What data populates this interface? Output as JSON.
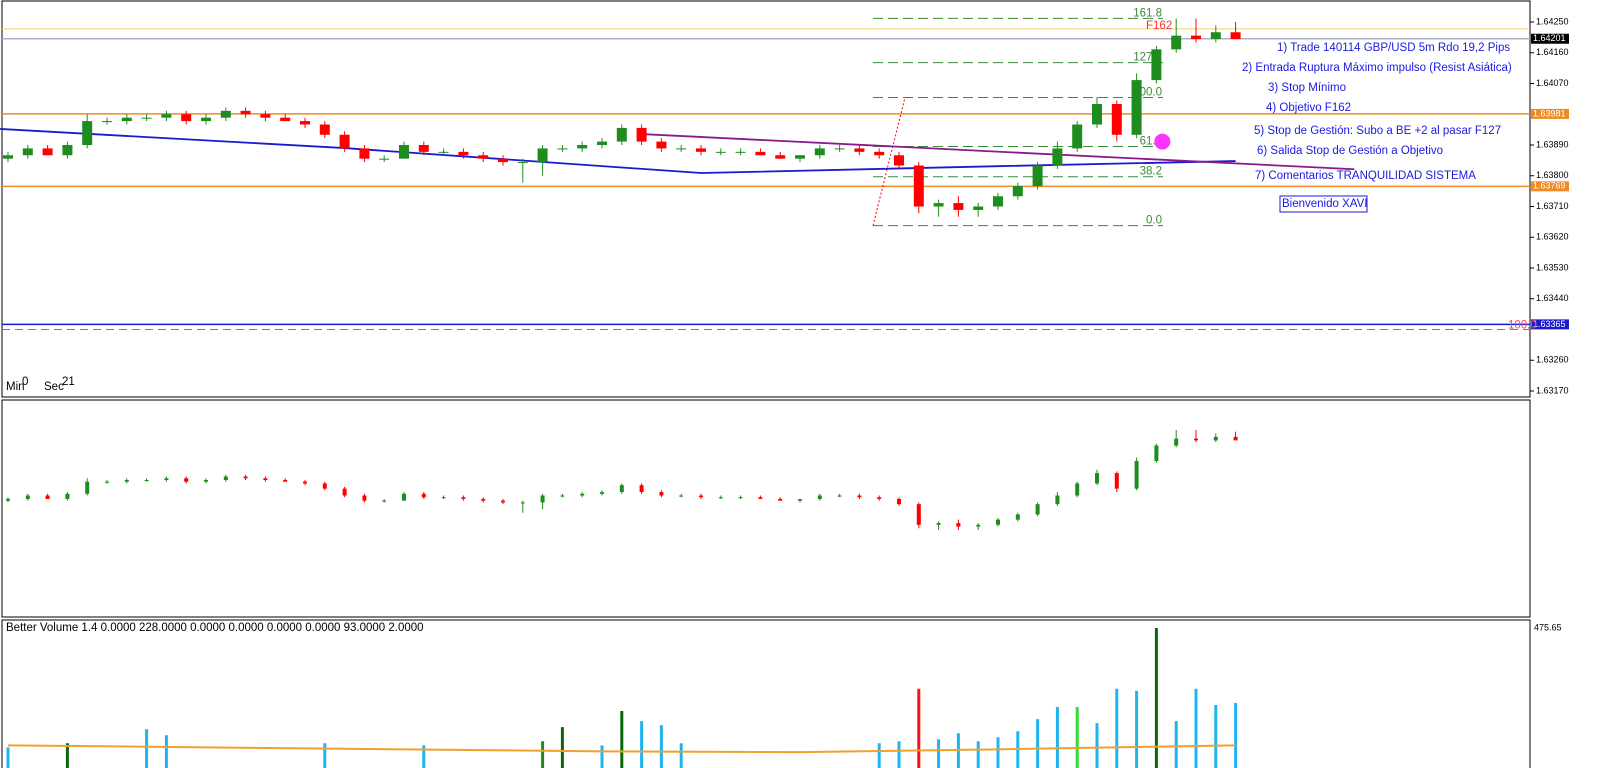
{
  "price_axis": {
    "ylim": [
      1.6317,
      1.6425
    ],
    "ticks": [
      {
        "value": 1.6425,
        "label": "1.64250"
      },
      {
        "value": 1.6416,
        "label": "1.64160"
      },
      {
        "value": 1.6407,
        "label": "1.64070"
      },
      {
        "value": 1.6389,
        "label": "1.63890"
      },
      {
        "value": 1.638,
        "label": "1.63800"
      },
      {
        "value": 1.6371,
        "label": "1.63710"
      },
      {
        "value": 1.6362,
        "label": "1.63620"
      },
      {
        "value": 1.6353,
        "label": "1.63530"
      },
      {
        "value": 1.6344,
        "label": "1.63440"
      },
      {
        "value": 1.6326,
        "label": "1.63260"
      },
      {
        "value": 1.6317,
        "label": "1.63170"
      }
    ]
  },
  "levels": [
    {
      "value": 1.6423,
      "color": "#f0d060"
    },
    {
      "value": 1.64201,
      "color": "#b0b0c8",
      "bg": "#000000"
    },
    {
      "value": 1.63981,
      "color": "#f08a24",
      "bg": "#f08a24"
    },
    {
      "value": 1.63769,
      "color": "#f08a24",
      "bg": "#f08a24"
    },
    {
      "value": 1.63365,
      "color": "#1a1ad0",
      "bg": "#1a1ad0"
    }
  ],
  "dashed_level": {
    "value": 1.6335,
    "label": "100.0",
    "color": "#ff4060"
  },
  "candles": {
    "up_color": "#1e8c1e",
    "down_color": "#ff0000",
    "open": [
      1.6385,
      1.6386,
      1.6388,
      1.6386,
      1.6389,
      1.6396,
      1.6396,
      1.6397,
      1.6397,
      1.6398,
      1.6396,
      1.6397,
      1.6399,
      1.6398,
      1.6397,
      1.6396,
      1.6395,
      1.6392,
      1.6388,
      1.6385,
      1.6385,
      1.6389,
      1.6387,
      1.6387,
      1.6386,
      1.6385,
      1.6384,
      1.6384,
      1.6388,
      1.6388,
      1.6389,
      1.639,
      1.6394,
      1.639,
      1.6388,
      1.6388,
      1.6387,
      1.6387,
      1.6387,
      1.6386,
      1.6385,
      1.6386,
      1.6388,
      1.6388,
      1.6387,
      1.6386,
      1.6383,
      1.6371,
      1.6372,
      1.637,
      1.6371,
      1.6374,
      1.6377,
      1.6383,
      1.6388,
      1.6395,
      1.6401,
      1.6392,
      1.6408,
      1.6417,
      1.6421,
      1.642,
      1.6422
    ],
    "high": [
      1.6387,
      1.6389,
      1.6389,
      1.639,
      1.6398,
      1.6397,
      1.6398,
      1.6398,
      1.6399,
      1.6399,
      1.6398,
      1.64,
      1.64,
      1.6399,
      1.6398,
      1.6397,
      1.6396,
      1.6393,
      1.6389,
      1.6386,
      1.639,
      1.639,
      1.6388,
      1.6388,
      1.6387,
      1.6386,
      1.6385,
      1.6389,
      1.6389,
      1.639,
      1.6391,
      1.6395,
      1.6395,
      1.6391,
      1.6389,
      1.6389,
      1.6388,
      1.6388,
      1.6388,
      1.6387,
      1.6386,
      1.6389,
      1.6389,
      1.6389,
      1.6388,
      1.6387,
      1.6384,
      1.6373,
      1.6374,
      1.6372,
      1.6375,
      1.6378,
      1.6384,
      1.639,
      1.6396,
      1.6403,
      1.6402,
      1.641,
      1.6418,
      1.6426,
      1.6426,
      1.6424,
      1.6425
    ],
    "low": [
      1.6384,
      1.6385,
      1.6386,
      1.6385,
      1.6388,
      1.6395,
      1.6395,
      1.6396,
      1.6396,
      1.6395,
      1.6395,
      1.6396,
      1.6397,
      1.6396,
      1.6396,
      1.6394,
      1.6391,
      1.6387,
      1.6384,
      1.6384,
      1.6385,
      1.6386,
      1.6386,
      1.6385,
      1.6384,
      1.6383,
      1.6378,
      1.638,
      1.6387,
      1.6387,
      1.6388,
      1.6389,
      1.6389,
      1.6387,
      1.6387,
      1.6386,
      1.6386,
      1.6386,
      1.6386,
      1.6385,
      1.6384,
      1.6385,
      1.6387,
      1.6386,
      1.6385,
      1.6382,
      1.6369,
      1.6368,
      1.6368,
      1.6368,
      1.637,
      1.6373,
      1.6376,
      1.6382,
      1.6387,
      1.6394,
      1.639,
      1.6391,
      1.6407,
      1.6416,
      1.6419,
      1.6419,
      1.642
    ],
    "close": [
      1.6386,
      1.6388,
      1.6386,
      1.6389,
      1.6396,
      1.6396,
      1.6397,
      1.6397,
      1.6398,
      1.6396,
      1.6397,
      1.6399,
      1.6398,
      1.6397,
      1.6396,
      1.6395,
      1.6392,
      1.6388,
      1.6385,
      1.6385,
      1.6389,
      1.6387,
      1.6387,
      1.6386,
      1.6385,
      1.6384,
      1.6384,
      1.6388,
      1.6388,
      1.6389,
      1.639,
      1.6394,
      1.639,
      1.6388,
      1.6388,
      1.6387,
      1.6387,
      1.6387,
      1.6386,
      1.6385,
      1.6386,
      1.6388,
      1.6388,
      1.6387,
      1.6386,
      1.6383,
      1.6371,
      1.6372,
      1.637,
      1.6371,
      1.6374,
      1.6377,
      1.6383,
      1.6388,
      1.6395,
      1.6401,
      1.6392,
      1.6408,
      1.6417,
      1.6421,
      1.642,
      1.6422,
      1.642
    ]
  },
  "lines": [
    {
      "color": "#1a1ad0",
      "x": [
        -0.4,
        17,
        35,
        50,
        62
      ],
      "values": [
        1.63937,
        1.63881,
        1.63808,
        1.63828,
        1.63843
      ]
    },
    {
      "color": "#8a1a8a",
      "x": [
        32,
        68
      ],
      "values": [
        1.63922,
        1.63819
      ]
    }
  ],
  "marker": {
    "x": 58.3,
    "value": 1.639,
    "color": "#ff33ff"
  },
  "fib": {
    "low": 1.63654,
    "high": 1.64029,
    "color": "#3a8a3a",
    "levels": [
      {
        "value": 161.8,
        "label": "161.8"
      },
      {
        "value": 127.2,
        "label": "127.2"
      },
      {
        "value": 100,
        "label": "100.0"
      },
      {
        "value": 61.8,
        "label": "61.8"
      },
      {
        "value": 38.2,
        "label": "38.2"
      },
      {
        "value": 0,
        "label": "0.0"
      }
    ]
  },
  "f162": "F162",
  "annotations": [
    "1) Trade 140114 GBP/USD 5m Rdo 19,2 Pips",
    "2) Entrada Ruptura Máximo impulso (Resist Asiática)",
    "3) Stop Mínimo",
    "4) Objetivo F162",
    "5) Stop de Gestión: Subo a BE +2 al pasar F127",
    "6) Salida Stop de Gestión a Objetivo",
    "7) Comentarios TRANQUILIDAD SISTEMA"
  ],
  "welcome": "Bienvenido XAVI",
  "timer": {
    "min_label": "Min",
    "min": 0,
    "sec_label": "Sec",
    "sec": 21
  },
  "volume": {
    "title": "Better Volume 1.4 0.0000 228.0000 0.0000 0.0000 0.0000 0.0000 93.0000 2.0000",
    "max": 475.65,
    "values": [
      180,
      120,
      120,
      190,
      120,
      120,
      120,
      225,
      210,
      120,
      120,
      120,
      120,
      120,
      120,
      120,
      190,
      120,
      120,
      120,
      120,
      185,
      120,
      120,
      120,
      120,
      120,
      195,
      230,
      120,
      185,
      270,
      245,
      235,
      190,
      120,
      120,
      120,
      120,
      120,
      120,
      120,
      120,
      120,
      190,
      195,
      325,
      200,
      215,
      195,
      205,
      220,
      250,
      280,
      280,
      240,
      325,
      320,
      475.65,
      245,
      325,
      285,
      290
    ],
    "colors": [
      "#1eb4f0",
      "#1eb4f0",
      "#1eb4f0",
      "#0a6a0a",
      "#1eb4f0",
      "#1eb4f0",
      "#1eb4f0",
      "#1eb4f0",
      "#1eb4f0",
      "#1eb4f0",
      "#1eb4f0",
      "#1eb4f0",
      "#1eb4f0",
      "#1eb4f0",
      "#1eb4f0",
      "#1eb4f0",
      "#1eb4f0",
      "#1eb4f0",
      "#1eb4f0",
      "#1eb4f0",
      "#1eb4f0",
      "#1eb4f0",
      "#1eb4f0",
      "#1eb4f0",
      "#1eb4f0",
      "#1eb4f0",
      "#1eb4f0",
      "#1e8c1e",
      "#0a6a0a",
      "#1eb4f0",
      "#1eb4f0",
      "#0a6a0a",
      "#1eb4f0",
      "#1eb4f0",
      "#1eb4f0",
      "#1eb4f0",
      "#1eb4f0",
      "#1eb4f0",
      "#1eb4f0",
      "#1eb4f0",
      "#1eb4f0",
      "#1eb4f0",
      "#1eb4f0",
      "#1eb4f0",
      "#1eb4f0",
      "#1eb4f0",
      "#ff1010",
      "#1eb4f0",
      "#1eb4f0",
      "#1eb4f0",
      "#1eb4f0",
      "#1eb4f0",
      "#1eb4f0",
      "#1eb4f0",
      "#33dd33",
      "#1eb4f0",
      "#1eb4f0",
      "#1eb4f0",
      "#0a6a0a",
      "#1eb4f0",
      "#1eb4f0",
      "#1eb4f0",
      "#1eb4f0"
    ],
    "ma": {
      "color": "#f0a030",
      "x": [
        0,
        10,
        20,
        30,
        40,
        50,
        62
      ],
      "values": [
        185,
        180,
        175,
        170,
        168,
        175,
        185
      ]
    }
  }
}
